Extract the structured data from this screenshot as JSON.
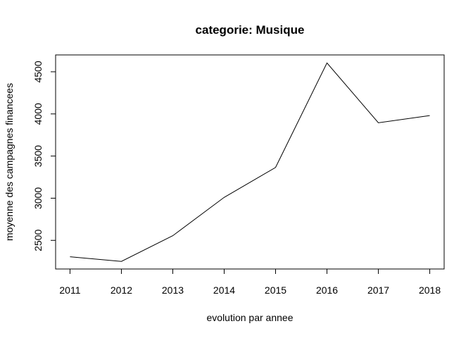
{
  "chart_data": {
    "type": "line",
    "title": "categorie: Musique",
    "xlabel": "evolution par annee",
    "ylabel": "moyenne des campagnes financees",
    "x": [
      2011,
      2012,
      2013,
      2014,
      2015,
      2016,
      2017,
      2018
    ],
    "series": [
      {
        "values": [
          2305,
          2250,
          2555,
          3010,
          3365,
          4605,
          3895,
          3980
        ]
      }
    ],
    "xticks": [
      "2011",
      "2012",
      "2013",
      "2014",
      "2015",
      "2016",
      "2017",
      "2018"
    ],
    "yticks": [
      "2500",
      "3000",
      "3500",
      "4000",
      "4500"
    ],
    "xlim": [
      2010.72,
      2018.28
    ],
    "ylim": [
      2160,
      4700
    ],
    "grid": false,
    "legend": "none",
    "line_color": "#000000"
  }
}
